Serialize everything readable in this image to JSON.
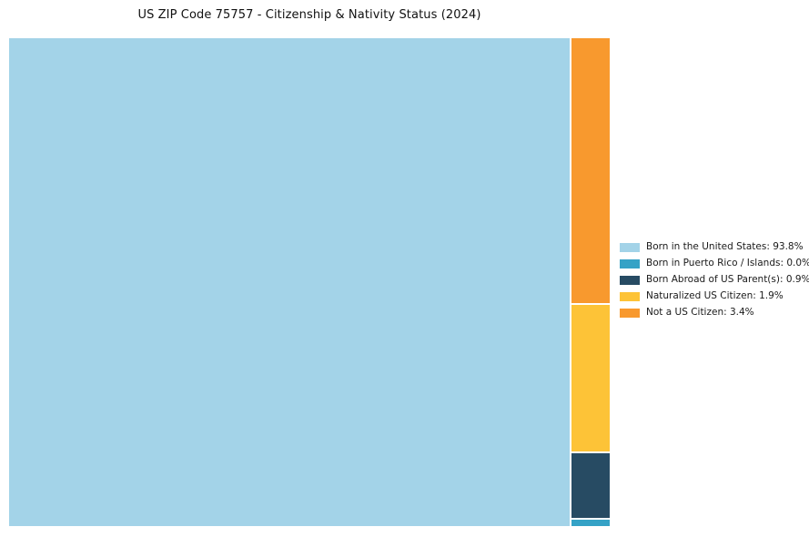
{
  "title": "US ZIP Code 75757 - Citizenship & Nativity Status (2024)",
  "chart_data": {
    "type": "treemap",
    "title": "US ZIP Code 75757 - Citizenship & Nativity Status (2024)",
    "categories": [
      "Born in the United States",
      "Born in Puerto Rico / Islands",
      "Born Abroad of US Parent(s)",
      "Naturalized US Citizen",
      "Not a US Citizen"
    ],
    "values": [
      93.8,
      0.0,
      0.9,
      1.9,
      3.4
    ],
    "unit": "%",
    "colors": [
      "#A3D3E8",
      "#35A2C6",
      "#274B63",
      "#FDC337",
      "#F8992E"
    ],
    "legend_position": "right",
    "grid": false,
    "legend_labels": [
      "Born in the United States: 93.8%",
      "Born in Puerto Rico / Islands: 0.0%",
      "Born Abroad of US Parent(s): 0.9%",
      "Naturalized US Citizen: 1.9%",
      "Not a US Citizen: 3.4%"
    ]
  }
}
